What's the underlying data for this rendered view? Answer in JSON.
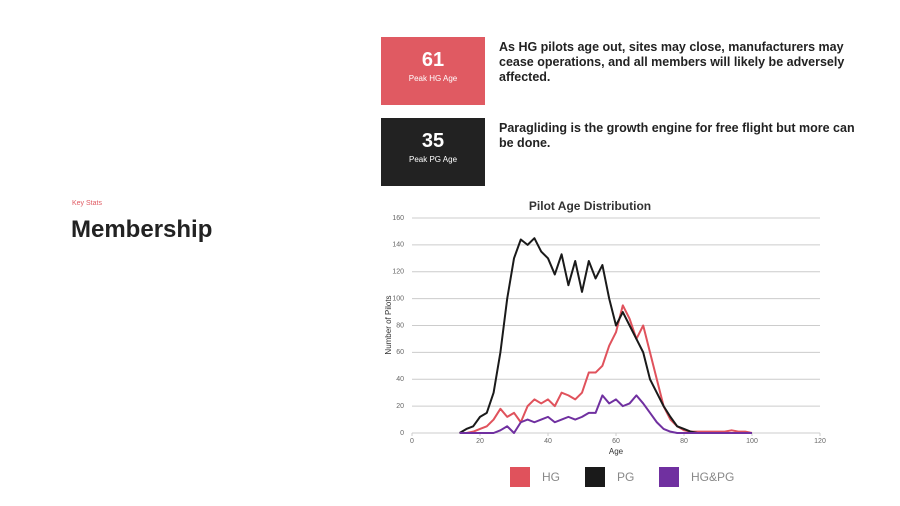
{
  "kicker": "Key Stats",
  "heading": "Membership",
  "stats": [
    {
      "value": 61,
      "label": "Peak HG Age",
      "text": "As HG pilots age out, sites may close, manufacturers may cease operations, and all members will likely be adversely affected.",
      "color": "#e05a62"
    },
    {
      "value": 35,
      "label": "Peak PG Age",
      "text": "Paragliding is the growth engine for free flight but more can be done.",
      "color": "#222222"
    }
  ],
  "chart_data": {
    "type": "line",
    "title": "Pilot Age Distribution",
    "x_label": "Age",
    "y_label": "Number of Pilots",
    "x": [
      14,
      16,
      18,
      20,
      22,
      24,
      26,
      28,
      30,
      32,
      34,
      36,
      38,
      40,
      42,
      44,
      46,
      48,
      50,
      52,
      54,
      56,
      58,
      60,
      62,
      64,
      66,
      68,
      70,
      72,
      74,
      76,
      78,
      80,
      82,
      84,
      86,
      88,
      90,
      92,
      94,
      96,
      98,
      100
    ],
    "series": [
      {
        "name": "HG",
        "color": "#e0525c",
        "values": [
          0,
          0,
          1,
          3,
          5,
          10,
          18,
          12,
          15,
          8,
          20,
          25,
          22,
          25,
          20,
          30,
          28,
          25,
          30,
          45,
          45,
          50,
          65,
          75,
          95,
          85,
          70,
          80,
          60,
          40,
          20,
          10,
          5,
          2,
          1,
          1,
          1,
          1,
          1,
          1,
          2,
          1,
          1,
          0
        ]
      },
      {
        "name": "PG",
        "color": "#1a1a1a",
        "values": [
          0,
          3,
          5,
          12,
          15,
          30,
          60,
          100,
          130,
          144,
          140,
          145,
          135,
          130,
          118,
          133,
          110,
          128,
          105,
          128,
          115,
          125,
          100,
          80,
          90,
          80,
          70,
          60,
          40,
          30,
          20,
          12,
          5,
          3,
          1,
          0,
          0,
          0,
          0,
          0,
          0,
          0,
          0,
          0
        ]
      },
      {
        "name": "HG&PG",
        "color": "#7030a0",
        "values": [
          0,
          0,
          0,
          0,
          0,
          0,
          2,
          5,
          0,
          8,
          10,
          8,
          10,
          12,
          8,
          10,
          12,
          10,
          12,
          15,
          15,
          28,
          22,
          25,
          20,
          22,
          28,
          22,
          15,
          8,
          3,
          1,
          0,
          0,
          0,
          0,
          0,
          0,
          0,
          0,
          0,
          0,
          0,
          0
        ]
      }
    ],
    "xlim": [
      0,
      120
    ],
    "xticks": [
      0,
      20,
      40,
      60,
      80,
      100,
      120
    ],
    "ylim": [
      0,
      160
    ],
    "yticks": [
      0,
      20,
      40,
      60,
      80,
      100,
      120,
      140,
      160
    ],
    "grid": true
  }
}
